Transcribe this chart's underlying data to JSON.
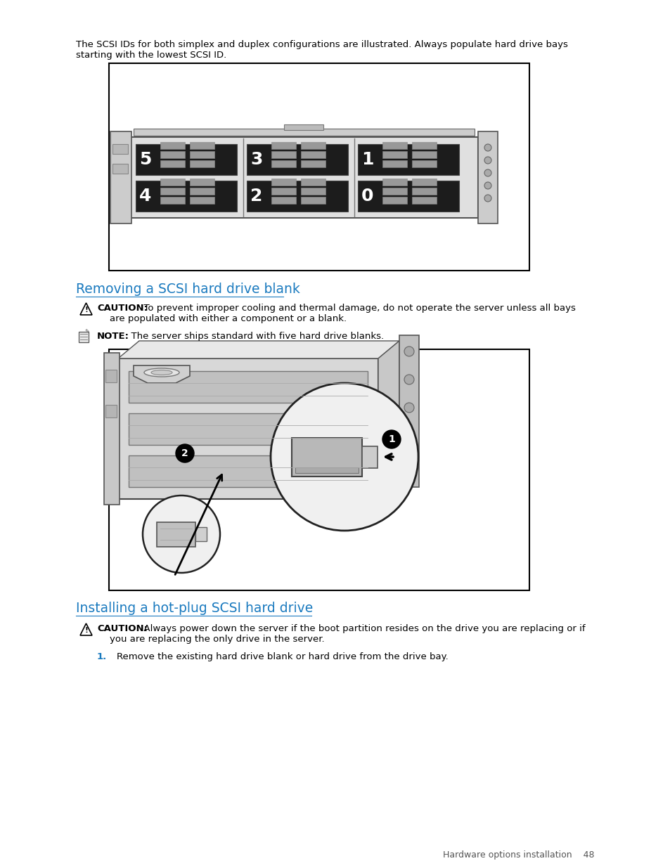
{
  "bg_color": "#ffffff",
  "intro_text_line1": "The SCSI IDs for both simplex and duplex configurations are illustrated. Always populate hard drive bays",
  "intro_text_line2": "starting with the lowest SCSI ID.",
  "section1_title": "Removing a SCSI hard drive blank",
  "section1_title_color": "#1a7abf",
  "caution1_bold": "CAUTION:",
  "caution1_rest": "  To prevent improper cooling and thermal damage, do not operate the server unless all bays",
  "caution1_line2": "are populated with either a component or a blank.",
  "note_bold": "NOTE:",
  "note_rest": "  The server ships standard with five hard drive blanks.",
  "section2_title": "Installing a hot-plug SCSI hard drive",
  "section2_title_color": "#1a7abf",
  "caution2_bold": "CAUTION:",
  "caution2_rest": "  Always power down the server if the boot partition resides on the drive you are replacing or if",
  "caution2_line2": "you are replacing the only drive in the server.",
  "step1_num": "1.",
  "step1_num_color": "#1a7abf",
  "step1_text": "Remove the existing hard drive blank or hard drive from the drive bay.",
  "footer_text": "Hardware options installation    48",
  "body_fontsize": 9.5,
  "title_fontsize": 13.5,
  "footer_fontsize": 9.0
}
